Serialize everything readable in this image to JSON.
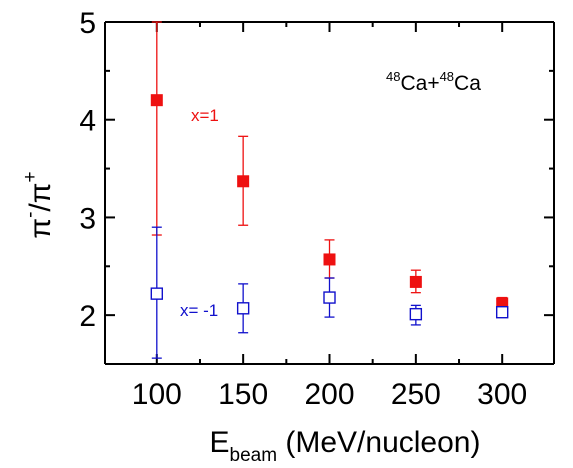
{
  "chart_data": {
    "type": "scatter",
    "title": "",
    "annotation": {
      "system": {
        "sup1": "48",
        "base1": "Ca+",
        "sup2": "48",
        "base2": "Ca"
      }
    },
    "xaxis": {
      "label_base": "E",
      "label_sub": "beam",
      "label_rest": " (MeV/nucleon)",
      "ticks": [
        100,
        150,
        200,
        250,
        300
      ],
      "minor_ticks": [
        125,
        175,
        225,
        275
      ],
      "range": [
        70,
        330
      ]
    },
    "yaxis": {
      "label_num": "π",
      "label_num_sup": "-",
      "label_den": "/π",
      "label_den_sup": "+",
      "ticks": [
        2,
        3,
        4,
        5
      ],
      "minor_ticks": [
        2.5,
        3.5,
        4.5
      ],
      "range": [
        1.5,
        5
      ]
    },
    "series": [
      {
        "name": "x=1",
        "color": "#ee1111",
        "marker": "filled-square",
        "points": [
          {
            "x": 100,
            "y": 4.2,
            "err_low": 2.82,
            "err_high": 5.0
          },
          {
            "x": 150,
            "y": 3.37,
            "err_low": 2.92,
            "err_high": 3.83
          },
          {
            "x": 200,
            "y": 2.57,
            "err_low": 2.38,
            "err_high": 2.77
          },
          {
            "x": 250,
            "y": 2.34,
            "err_low": 2.23,
            "err_high": 2.46
          },
          {
            "x": 300,
            "y": 2.12,
            "err_low": 2.04,
            "err_high": 2.18
          }
        ]
      },
      {
        "name": "x= -1",
        "color": "#1111cc",
        "marker": "open-square",
        "points": [
          {
            "x": 100,
            "y": 2.22,
            "err_low": 1.56,
            "err_high": 2.9
          },
          {
            "x": 150,
            "y": 2.07,
            "err_low": 1.82,
            "err_high": 2.32
          },
          {
            "x": 200,
            "y": 2.18,
            "err_low": 1.98,
            "err_high": 2.38
          },
          {
            "x": 250,
            "y": 2.01,
            "err_low": 1.9,
            "err_high": 2.1
          },
          {
            "x": 300,
            "y": 2.03,
            "err_low": 1.99,
            "err_high": 2.07
          }
        ]
      }
    ]
  }
}
